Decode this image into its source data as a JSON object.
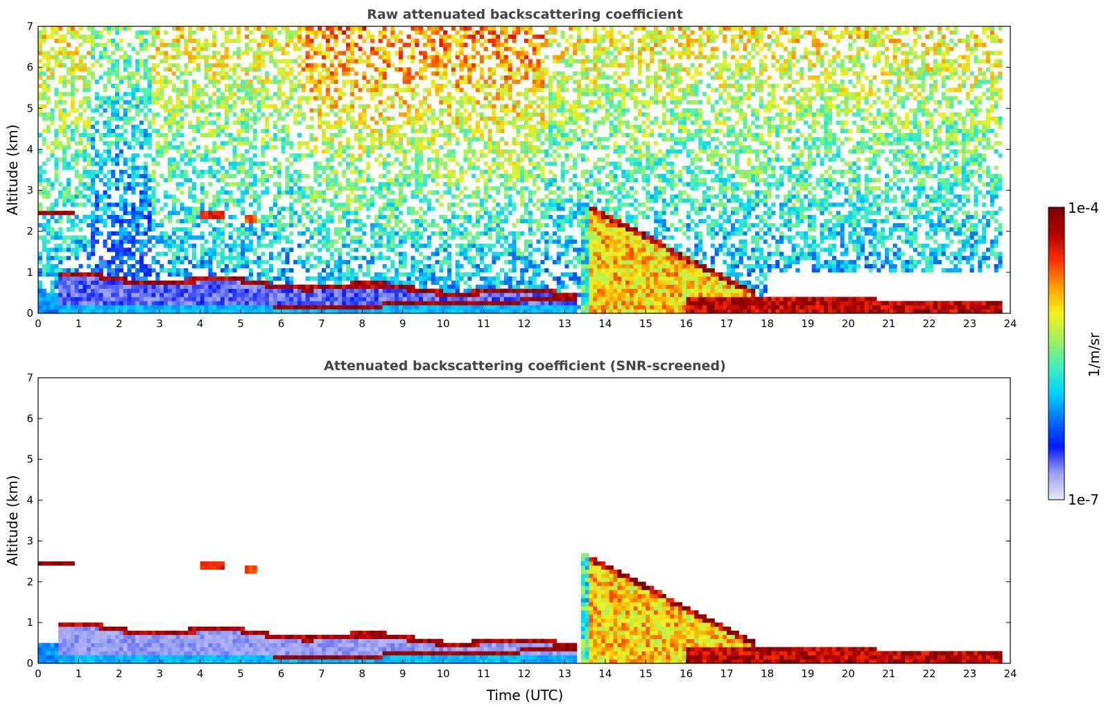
{
  "chart_data": [
    {
      "type": "heatmap",
      "title": "Raw attenuated backscattering coefficient",
      "xlabel": "",
      "ylabel": "Altitude (km)",
      "xlim": [
        0,
        24
      ],
      "ylim": [
        0,
        7
      ],
      "xticks": [
        "0",
        "1",
        "2",
        "3",
        "4",
        "5",
        "6",
        "7",
        "8",
        "9",
        "10",
        "11",
        "12",
        "13",
        "14",
        "15",
        "16",
        "17",
        "18",
        "19",
        "20",
        "21",
        "22",
        "23",
        "24"
      ],
      "yticks": [
        "0",
        "1",
        "2",
        "3",
        "4",
        "5",
        "6",
        "7"
      ],
      "data_end_time": 23.8,
      "value_scale": "log",
      "features": [
        {
          "name": "residual layer / aerosol top",
          "t_start": 0.0,
          "t_end": 0.9,
          "altitude": 2.45,
          "value": 9e-05
        },
        {
          "name": "aerosol layer",
          "t_start": 4.0,
          "t_end": 4.6,
          "altitude": 2.4,
          "value": 6e-05
        },
        {
          "name": "aerosol layer",
          "t_start": 5.1,
          "t_end": 5.4,
          "altitude": 2.3,
          "value": 5e-05
        },
        {
          "name": "low cloud band",
          "t_start": 0.5,
          "t_end": 13.3,
          "altitude_start": 0.9,
          "altitude_end": 0.5,
          "value": 8e-05
        },
        {
          "name": "surface layer",
          "t_start": 5.8,
          "t_end": 13.3,
          "altitude_start": 0.1,
          "altitude_end": 0.35,
          "value": 7e-05
        },
        {
          "name": "thick aerosol plume",
          "t_start": 13.4,
          "t_end": 17.7,
          "altitude_top_start": 2.75,
          "altitude_top_end": 0.5,
          "value": 3e-05
        },
        {
          "name": "nighttime boundary layer",
          "t_start": 16.0,
          "t_end": 23.8,
          "altitude_start": 0.4,
          "altitude_end": 0.3,
          "value": 9e-05
        }
      ]
    },
    {
      "type": "heatmap",
      "title": "Attenuated backscattering coefficient (SNR-screened)",
      "xlabel": "Time (UTC)",
      "ylabel": "Altitude (km)",
      "xlim": [
        0,
        24
      ],
      "ylim": [
        0,
        7
      ],
      "xticks": [
        "0",
        "1",
        "2",
        "3",
        "4",
        "5",
        "6",
        "7",
        "8",
        "9",
        "10",
        "11",
        "12",
        "13",
        "14",
        "15",
        "16",
        "17",
        "18",
        "19",
        "20",
        "21",
        "22",
        "23",
        "24"
      ],
      "yticks": [
        "0",
        "1",
        "2",
        "3",
        "4",
        "5",
        "6",
        "7"
      ],
      "data_end_time": 23.8,
      "value_scale": "log"
    }
  ],
  "colorbar": {
    "label": "1/m/sr",
    "max_label": "1e-4",
    "min_label": "1e-7",
    "vmin": 1e-07,
    "vmax": 0.0001,
    "colormap": "jet",
    "colors": [
      "#e6e8f5",
      "#9aa0f0",
      "#0018ff",
      "#0070ff",
      "#00d2ff",
      "#40f0c0",
      "#a0f060",
      "#f2f21c",
      "#ffa000",
      "#ff3000",
      "#b00000",
      "#7a0000"
    ]
  }
}
